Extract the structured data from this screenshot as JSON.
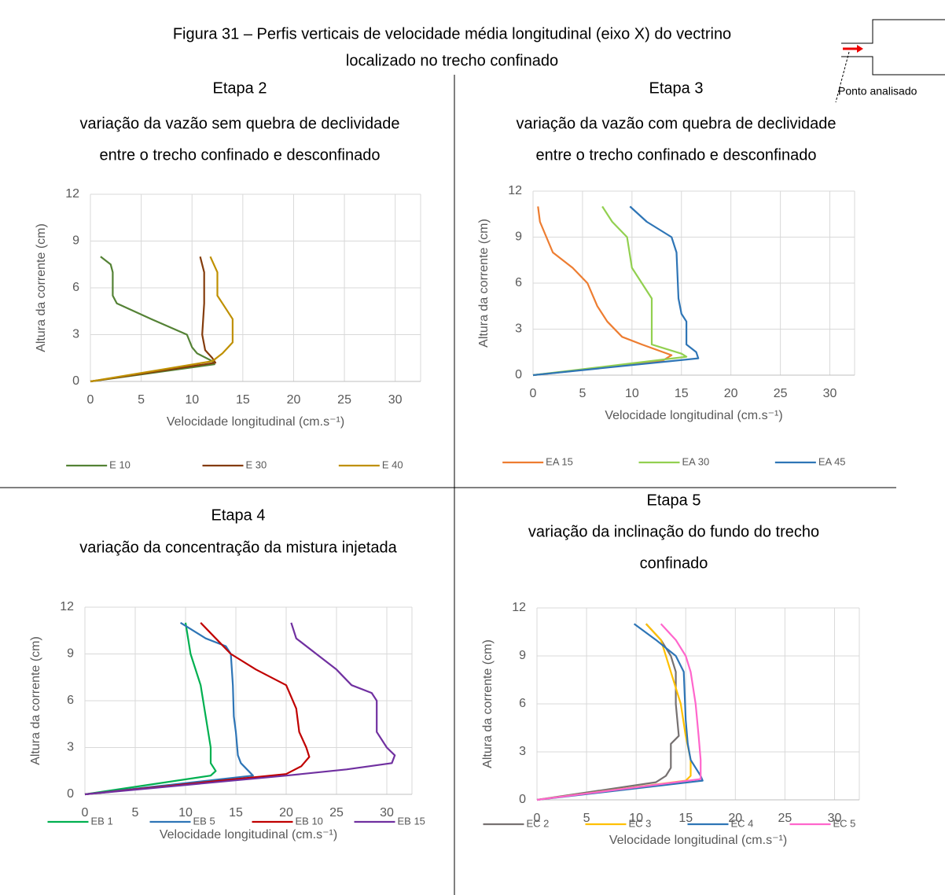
{
  "figure_title": [
    "Figura 31 – Perfis verticais de velocidade média longitudinal (eixo X) do vectrino",
    "localizado no trecho confinado"
  ],
  "inset_label": "Ponto analisado",
  "chart_data": [
    {
      "type": "line",
      "title": "Etapa 2",
      "subtitle": [
        "variação da vazão sem quebra de declividade",
        "entre o trecho confinado e desconfinado"
      ],
      "x_label": "Velocidade longitudinal (cm.s⁻¹)",
      "y_label": "Altura da corrente (cm)",
      "xlim": [
        0,
        32.5
      ],
      "xticks": [
        0,
        5,
        10,
        15,
        20,
        25,
        30
      ],
      "ylim": [
        0,
        12
      ],
      "yticks": [
        0,
        3,
        6,
        9,
        12
      ],
      "grid": true,
      "legend": "bottom",
      "series": [
        {
          "name": "E 10",
          "color": "#548235",
          "x": [
            1,
            2,
            2.2,
            2.2,
            2.6,
            6,
            9.5,
            10,
            10.5,
            12,
            12.2,
            0
          ],
          "values": [
            8,
            7.5,
            7,
            5.5,
            5,
            4,
            3,
            2.2,
            1.8,
            1.3,
            1.1,
            0
          ]
        },
        {
          "name": "E 30",
          "color": "#843c0c",
          "x": [
            10.8,
            11.2,
            11.2,
            11,
            11.3,
            12,
            12.3,
            0
          ],
          "values": [
            8,
            7,
            5,
            3,
            2,
            1.5,
            1.2,
            0
          ]
        },
        {
          "name": "E 40",
          "color": "#bf9000",
          "x": [
            11.8,
            12.5,
            12.5,
            13,
            13.5,
            14,
            14,
            13,
            12,
            0
          ],
          "values": [
            8,
            7,
            5.5,
            5,
            4.5,
            4,
            2.5,
            1.8,
            1.3,
            0
          ]
        }
      ]
    },
    {
      "type": "line",
      "title": "Etapa 3",
      "subtitle": [
        "variação da vazão com quebra de declividade",
        "entre o trecho confinado e desconfinado"
      ],
      "x_label": "Velocidade longitudinal (cm.s⁻¹)",
      "y_label": "Altura da corrente (cm)",
      "xlim": [
        0,
        32.5
      ],
      "xticks": [
        0,
        5,
        10,
        15,
        20,
        25,
        30
      ],
      "ylim": [
        0,
        12
      ],
      "yticks": [
        0,
        3,
        6,
        9,
        12
      ],
      "grid": true,
      "legend": "bottom",
      "series": [
        {
          "name": "EA 15",
          "color": "#ed7d31",
          "x": [
            0.5,
            0.7,
            2,
            4,
            5.5,
            6.5,
            7.5,
            9,
            11,
            14,
            13,
            0
          ],
          "values": [
            11,
            10,
            8,
            7,
            6,
            4.5,
            3.5,
            2.5,
            2,
            1.3,
            0.9,
            0
          ]
        },
        {
          "name": "EA 30",
          "color": "#92d050",
          "x": [
            7,
            8,
            9.5,
            10,
            11,
            12,
            12,
            13,
            15,
            15.5,
            0
          ],
          "values": [
            11,
            10,
            9,
            7,
            6,
            5,
            2,
            1.8,
            1.4,
            1.2,
            0
          ]
        },
        {
          "name": "EA 45",
          "color": "#2e75b6",
          "x": [
            9.8,
            11.5,
            14,
            14.5,
            14.7,
            15,
            15.5,
            15.5,
            16.5,
            16.7,
            0
          ],
          "values": [
            11,
            10,
            9,
            8,
            5,
            4,
            3.5,
            2,
            1.5,
            1.1,
            0
          ]
        }
      ]
    },
    {
      "type": "line",
      "title": "Etapa 4",
      "subtitle": [
        "variação da concentração da mistura injetada"
      ],
      "x_label": "Velocidade longitudinal (cm.s⁻¹)",
      "y_label": "Altura da corrente (cm)",
      "xlim": [
        0,
        32.5
      ],
      "xticks": [
        0,
        5,
        10,
        15,
        20,
        25,
        30
      ],
      "ylim": [
        0,
        12
      ],
      "yticks": [
        0,
        3,
        6,
        9,
        12
      ],
      "grid": true,
      "legend": "bottom",
      "series": [
        {
          "name": "EB 1",
          "color": "#00b050",
          "x": [
            10,
            10.5,
            11.5,
            12,
            12.5,
            12.5,
            13,
            12.5,
            0
          ],
          "values": [
            11,
            9,
            7,
            5,
            3,
            2,
            1.5,
            1.2,
            0
          ]
        },
        {
          "name": "EB 5",
          "color": "#2e75b6",
          "x": [
            9.5,
            12,
            14,
            14.5,
            14.7,
            14.8,
            15,
            15.2,
            15.5,
            16.7,
            0
          ],
          "values": [
            11,
            10,
            9.5,
            9,
            7,
            5,
            4,
            2.5,
            2,
            1.2,
            0
          ]
        },
        {
          "name": "EB 10",
          "color": "#c00000",
          "x": [
            11.5,
            13,
            14.5,
            17,
            20,
            21,
            21.3,
            22,
            22.3,
            21.5,
            20,
            0
          ],
          "values": [
            11,
            10,
            9,
            8,
            7,
            5.5,
            4,
            3,
            2.4,
            1.8,
            1.3,
            0
          ]
        },
        {
          "name": "EB 15",
          "color": "#7030a0",
          "x": [
            20.5,
            21,
            23,
            25,
            26.5,
            28.5,
            29,
            29,
            30,
            30.8,
            30.5,
            26,
            20,
            0
          ],
          "values": [
            11,
            10,
            9,
            8,
            7,
            6.5,
            6,
            4,
            3,
            2.5,
            2,
            1.6,
            1.2,
            0
          ]
        }
      ]
    },
    {
      "type": "line",
      "title": "Etapa 5",
      "subtitle": [
        "variação da inclinação do fundo do trecho",
        "confinado"
      ],
      "x_label": "Velocidade longitudinal (cm.s⁻¹)",
      "y_label": "Altura da corrente (cm)",
      "xlim": [
        0,
        32.5
      ],
      "xticks": [
        0,
        5,
        10,
        15,
        20,
        25,
        30
      ],
      "ylim": [
        0,
        12
      ],
      "yticks": [
        0,
        3,
        6,
        9,
        12
      ],
      "grid": true,
      "legend": "bottom",
      "series": [
        {
          "name": "EC 2",
          "color": "#767171",
          "x": [
            11,
            12.5,
            13.5,
            14,
            14,
            14.3,
            13.5,
            13.5,
            13,
            12,
            0
          ],
          "values": [
            11,
            10,
            9,
            8,
            6,
            4,
            3.5,
            2,
            1.5,
            1.1,
            0
          ]
        },
        {
          "name": "EC 3",
          "color": "#ffc000",
          "x": [
            11,
            12.5,
            13.5,
            14.5,
            15,
            15.5,
            15.5,
            15,
            0
          ],
          "values": [
            11,
            10,
            8,
            6,
            4,
            2.5,
            1.5,
            1.2,
            0
          ]
        },
        {
          "name": "EC 4",
          "color": "#2e75b6",
          "x": [
            9.8,
            12,
            14,
            14.8,
            15,
            15.2,
            15.5,
            16,
            16.5,
            16.7,
            0
          ],
          "values": [
            11,
            10,
            9,
            8,
            5,
            3.5,
            2.5,
            2,
            1.5,
            1.2,
            0
          ]
        },
        {
          "name": "EC 5",
          "color": "#ff66cc",
          "x": [
            12.5,
            14,
            15,
            15.5,
            16,
            16.3,
            16.5,
            16.5,
            0
          ],
          "values": [
            11,
            10,
            9,
            8,
            6,
            4,
            2.5,
            1.3,
            0
          ]
        }
      ]
    }
  ]
}
